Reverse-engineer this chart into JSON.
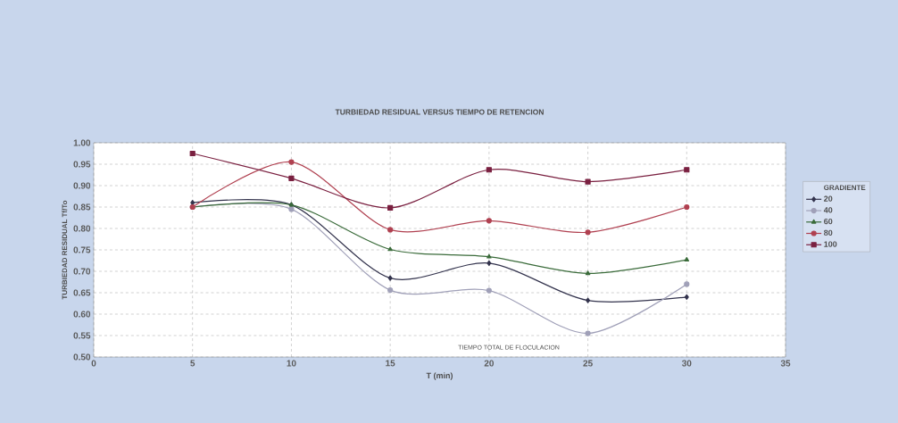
{
  "chart_data": {
    "type": "line",
    "title": "TURBIEDAD RESIDUAL VERSUS TIEMPO DE RETENCION",
    "xlabel": "T (min)",
    "ylabel": "TURBIEDAD RESIDUAL  Tf/To",
    "legend_title": "GRADIENTE",
    "legend": "right",
    "grid": true,
    "line_style": "solid",
    "x": [
      5,
      10,
      15,
      20,
      25,
      30
    ],
    "xlim": [
      0,
      35
    ],
    "xticks": [
      0,
      5,
      10,
      15,
      20,
      25,
      30,
      35
    ],
    "ylim": [
      0.5,
      1.0
    ],
    "yticks": [
      {
        "value": 0.5,
        "label": "0.50"
      },
      {
        "value": 0.55,
        "label": "0.55"
      },
      {
        "value": 0.6,
        "label": "0.60"
      },
      {
        "value": 0.65,
        "label": "0.65"
      },
      {
        "value": 0.7,
        "label": "0.70"
      },
      {
        "value": 0.75,
        "label": "0.75"
      },
      {
        "value": 0.8,
        "label": "0.80"
      },
      {
        "value": 0.85,
        "label": "0.85"
      },
      {
        "value": 0.9,
        "label": "0.90"
      },
      {
        "value": 0.95,
        "label": "0.95"
      },
      {
        "value": 1.0,
        "label": "1.00"
      }
    ],
    "series": [
      {
        "name": "20",
        "color": "#33334d",
        "marker": "diamond",
        "values": [
          0.86,
          0.855,
          0.684,
          0.719,
          0.632,
          0.64
        ]
      },
      {
        "name": "40",
        "color": "#a0a0b8",
        "marker": "circle",
        "values": [
          0.85,
          0.845,
          0.656,
          0.655,
          0.555,
          0.67
        ]
      },
      {
        "name": "60",
        "color": "#3a6b3a",
        "marker": "triangle",
        "values": [
          0.85,
          0.855,
          0.751,
          0.734,
          0.695,
          0.727
        ]
      },
      {
        "name": "80",
        "color": "#b04050",
        "marker": "circle",
        "values": [
          0.85,
          0.955,
          0.797,
          0.818,
          0.791,
          0.85
        ]
      },
      {
        "name": "100",
        "color": "#7a2040",
        "marker": "square",
        "values": [
          0.975,
          0.917,
          0.848,
          0.937,
          0.909,
          0.937
        ]
      }
    ],
    "annotations": [
      "TIEMPO TOTAL DE FLOCULACION"
    ]
  }
}
